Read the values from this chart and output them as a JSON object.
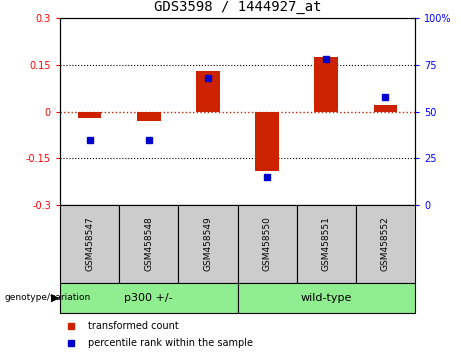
{
  "title": "GDS3598 / 1444927_at",
  "samples": [
    "GSM458547",
    "GSM458548",
    "GSM458549",
    "GSM458550",
    "GSM458551",
    "GSM458552"
  ],
  "groups": [
    "p300 +/-",
    "p300 +/-",
    "p300 +/-",
    "wild-type",
    "wild-type",
    "wild-type"
  ],
  "red_values": [
    -0.02,
    -0.03,
    0.13,
    -0.19,
    0.175,
    0.02
  ],
  "blue_values": [
    35,
    35,
    68,
    15,
    78,
    58
  ],
  "ylim_left": [
    -0.3,
    0.3
  ],
  "ylim_right": [
    0,
    100
  ],
  "yticks_left": [
    -0.3,
    -0.15,
    0.0,
    0.15,
    0.3
  ],
  "yticks_right": [
    0,
    25,
    50,
    75,
    100
  ],
  "bar_color": "#CC2200",
  "dot_color": "#0000CC",
  "hline_color": "#CC2200",
  "bg_label": "#cccccc",
  "group_color": "#90EE90",
  "title_fontsize": 10,
  "legend_red": "transformed count",
  "legend_blue": "percentile rank within the sample",
  "bar_width": 0.4
}
